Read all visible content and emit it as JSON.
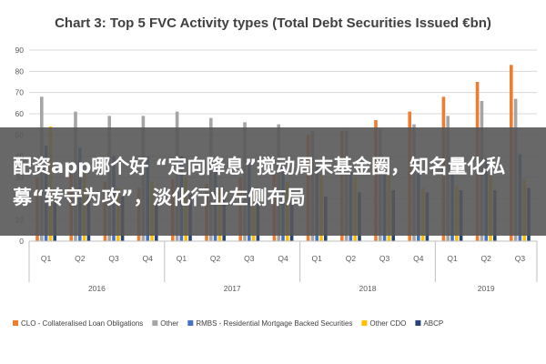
{
  "chart_data": {
    "type": "bar",
    "title": "Chart 3: Top 5 FVC Activity types (Total Debt Securities Issued €bn)",
    "ylim": [
      0,
      90
    ],
    "yticks": [
      0,
      10,
      20,
      30,
      40,
      50,
      60,
      70,
      80,
      90
    ],
    "categories": [
      "Q1",
      "Q2",
      "Q3",
      "Q4",
      "Q1",
      "Q2",
      "Q3",
      "Q4",
      "Q1",
      "Q2",
      "Q3",
      "Q4",
      "Q1",
      "Q2",
      "Q3"
    ],
    "year_groups": [
      {
        "label": "2016",
        "count": 4
      },
      {
        "label": "2017",
        "count": 4
      },
      {
        "label": "2018",
        "count": 4
      },
      {
        "label": "2019",
        "count": 3
      }
    ],
    "series": [
      {
        "name": "CLO - Collateralised Loan Obligations",
        "color": "#ed7d31",
        "values": [
          30,
          32,
          28,
          25,
          29,
          27,
          30,
          33,
          50,
          52,
          57,
          61,
          68,
          75,
          83
        ]
      },
      {
        "name": "Other",
        "color": "#a5a5a5",
        "values": [
          68,
          61,
          59,
          59,
          61,
          58,
          56,
          55,
          52,
          52,
          53,
          55,
          59,
          66,
          67
        ]
      },
      {
        "name": "RMBS - Residential Mortgage Backed Securities",
        "color": "#4472c4",
        "values": [
          45,
          44,
          40,
          40,
          40,
          38,
          37,
          36,
          35,
          34,
          34,
          33,
          35,
          39,
          41
        ]
      },
      {
        "name": "Other CDO",
        "color": "#ffc000",
        "values": [
          54,
          32,
          25,
          28,
          30,
          25,
          25,
          28,
          32,
          30,
          32,
          25,
          26,
          32,
          29
        ]
      },
      {
        "name": "ABCP",
        "color": "#264478",
        "values": [
          20,
          21,
          21,
          19,
          22,
          20,
          20,
          22,
          21,
          23,
          24,
          23,
          24,
          24,
          25
        ]
      }
    ],
    "legend_position": "bottom",
    "grid": true
  },
  "overlay": {
    "text": "配资app哪个好 “定向降息”搅动周末基金圈，知名量化私募“转守为攻”，淡化行业左侧布局"
  }
}
